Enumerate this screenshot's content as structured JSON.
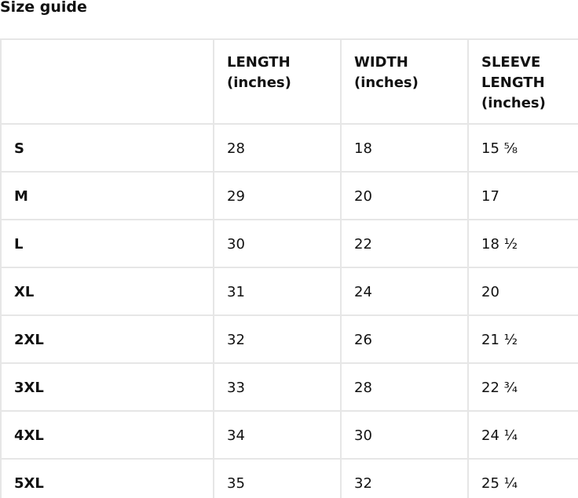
{
  "title": "Size guide",
  "table": {
    "headers": [
      "",
      "LENGTH (inches)",
      "WIDTH (inches)",
      "SLEEVE LENGTH (inches)"
    ],
    "rows": [
      [
        "S",
        "28",
        "18",
        "15 ⅝"
      ],
      [
        "M",
        "29",
        "20",
        "17"
      ],
      [
        "L",
        "30",
        "22",
        "18 ½"
      ],
      [
        "XL",
        "31",
        "24",
        "20"
      ],
      [
        "2XL",
        "32",
        "26",
        "21 ½"
      ],
      [
        "3XL",
        "33",
        "28",
        "22 ¾"
      ],
      [
        "4XL",
        "34",
        "30",
        "24 ¼"
      ],
      [
        "5XL",
        "35",
        "32",
        "25 ¼"
      ]
    ]
  }
}
